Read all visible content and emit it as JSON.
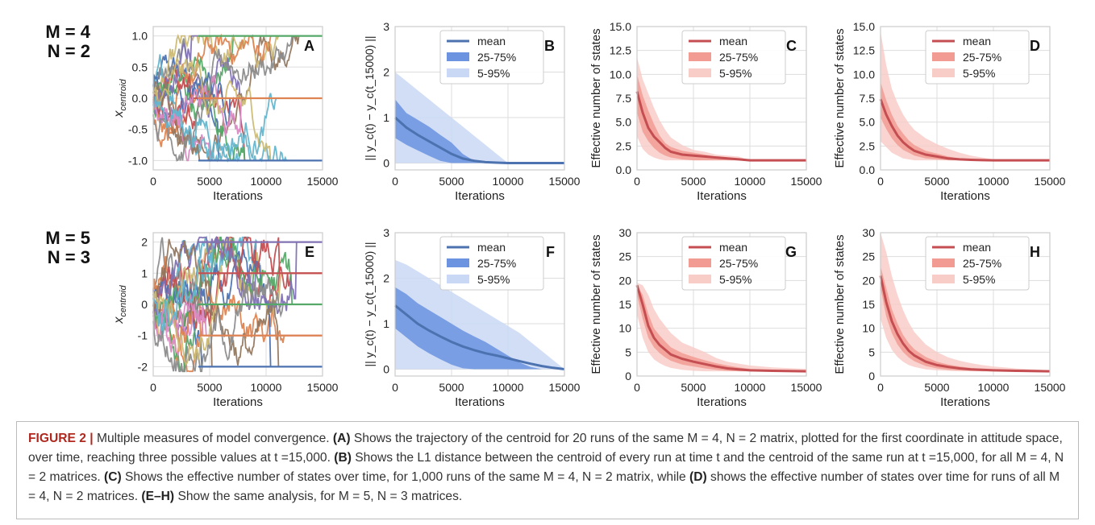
{
  "row_labels": [
    {
      "m": "M = 4",
      "n": "N = 2"
    },
    {
      "m": "M = 5",
      "n": "N = 3"
    }
  ],
  "colors": {
    "blue_mean": "#4c72b0",
    "blue_inner": "#6b93e0",
    "blue_outer": "#c9d8f5",
    "red_mean": "#c44e52",
    "red_inner": "#f29b93",
    "red_outer": "#f8cdc8",
    "grid": "#dddddd",
    "frame": "#cccccc",
    "traj": [
      "#4c72b0",
      "#dd8452",
      "#55a868",
      "#c44e52",
      "#8172b3",
      "#937860",
      "#da8bc3",
      "#8c8c8c",
      "#ccb974",
      "#64b5cd"
    ]
  },
  "chart_data": [
    {
      "id": "A",
      "panel_label": "A",
      "type": "line",
      "description": "trajectories of centroid for 20 runs",
      "xlabel": "Iterations",
      "ylabel": "x",
      "ylabel_sub": "centroid",
      "xlim": [
        0,
        15000
      ],
      "ylim": [
        -1.15,
        1.15
      ],
      "xticks": [
        "0",
        "5000",
        "10000",
        "15000"
      ],
      "yticks": [
        "-1.0",
        "-0.5",
        "0.0",
        "0.5",
        "1.0"
      ],
      "ytick_values": [
        -1,
        -0.5,
        0,
        0.5,
        1
      ],
      "runs": 20,
      "final_values": [
        -1,
        0,
        1
      ],
      "levels_from": 1
    },
    {
      "id": "B",
      "panel_label": "B",
      "type": "area",
      "xlabel": "Iterations",
      "ylabel": "|| y_c(t) − y_c(t_15000) ||",
      "xlim": [
        0,
        15000
      ],
      "ylim": [
        -0.15,
        3
      ],
      "xticks": [
        "0",
        "5000",
        "10000",
        "15000"
      ],
      "yticks": [
        "0",
        "1",
        "2",
        "3"
      ],
      "ytick_values": [
        0,
        1,
        2,
        3
      ],
      "legend": [
        "mean",
        "25-75%",
        "5-95%"
      ],
      "palette": "blue",
      "x": [
        0,
        1000,
        2000,
        3000,
        4000,
        5000,
        6000,
        7000,
        8000,
        9000,
        10000,
        12000,
        15000
      ],
      "mean": [
        1.0,
        0.78,
        0.62,
        0.48,
        0.34,
        0.2,
        0.1,
        0.05,
        0.02,
        0.01,
        0.0,
        0.0,
        0.0
      ],
      "q25": [
        0.55,
        0.4,
        0.28,
        0.16,
        0.05,
        0.0,
        0.0,
        0.0,
        0.0,
        0.0,
        0.0,
        0.0,
        0.0
      ],
      "q75": [
        1.4,
        1.1,
        0.95,
        0.8,
        0.62,
        0.45,
        0.2,
        0.05,
        0.02,
        0.0,
        0.0,
        0.0,
        0.0
      ],
      "q05": [
        0.0,
        0.0,
        0.0,
        0.0,
        0.0,
        0.0,
        0.0,
        0.0,
        0.0,
        0.0,
        0.0,
        0.0,
        0.0
      ],
      "q95": [
        2.0,
        1.8,
        1.6,
        1.4,
        1.2,
        1.0,
        0.8,
        0.6,
        0.4,
        0.2,
        0.0,
        0.0,
        0.0
      ]
    },
    {
      "id": "C",
      "panel_label": "C",
      "type": "area",
      "xlabel": "Iterations",
      "ylabel": "Effective number of states",
      "xlim": [
        0,
        15000
      ],
      "ylim": [
        0,
        15
      ],
      "xticks": [
        "0",
        "5000",
        "10000",
        "15000"
      ],
      "yticks": [
        "0.0",
        "2.5",
        "5.0",
        "7.5",
        "10.0",
        "12.5",
        "15.0"
      ],
      "ytick_values": [
        0,
        2.5,
        5,
        7.5,
        10,
        12.5,
        15
      ],
      "legend": [
        "mean",
        "25-75%",
        "5-95%"
      ],
      "palette": "red",
      "x": [
        0,
        500,
        1000,
        1500,
        2000,
        2500,
        3000,
        4000,
        5000,
        6000,
        7000,
        8000,
        9000,
        10000,
        12000,
        15000
      ],
      "mean": [
        8.2,
        6.0,
        4.4,
        3.5,
        2.9,
        2.3,
        1.9,
        1.6,
        1.5,
        1.4,
        1.3,
        1.2,
        1.1,
        1.0,
        1.0,
        1.0
      ],
      "q25": [
        6.0,
        4.0,
        3.0,
        2.3,
        1.8,
        1.5,
        1.3,
        1.1,
        1.0,
        1.0,
        1.0,
        1.0,
        1.0,
        1.0,
        1.0,
        1.0
      ],
      "q75": [
        10.0,
        7.8,
        6.2,
        4.8,
        3.6,
        2.8,
        2.4,
        2.0,
        1.8,
        1.6,
        1.4,
        1.3,
        1.2,
        1.0,
        1.0,
        1.0
      ],
      "q05": [
        3.5,
        2.2,
        1.6,
        1.3,
        1.1,
        1.0,
        1.0,
        1.0,
        1.0,
        1.0,
        1.0,
        1.0,
        1.0,
        1.0,
        1.0,
        1.0
      ],
      "q95": [
        11.8,
        9.5,
        8.0,
        6.5,
        5.2,
        4.2,
        3.4,
        2.6,
        2.1,
        1.9,
        1.6,
        1.5,
        1.4,
        1.0,
        1.0,
        1.0
      ]
    },
    {
      "id": "D",
      "panel_label": "D",
      "type": "area",
      "xlabel": "Iterations",
      "ylabel": "Effective number of states",
      "xlim": [
        0,
        15000
      ],
      "ylim": [
        0,
        15
      ],
      "xticks": [
        "0",
        "5000",
        "10000",
        "15000"
      ],
      "yticks": [
        "0.0",
        "2.5",
        "5.0",
        "7.5",
        "10.0",
        "12.5",
        "15.0"
      ],
      "ytick_values": [
        0,
        2.5,
        5,
        7.5,
        10,
        12.5,
        15
      ],
      "legend": [
        "mean",
        "25-75%",
        "5-95%"
      ],
      "palette": "red",
      "x": [
        0,
        500,
        1000,
        1500,
        2000,
        2500,
        3000,
        4000,
        5000,
        6000,
        7000,
        8000,
        9000,
        10000,
        12000,
        15000
      ],
      "mean": [
        7.4,
        5.8,
        4.6,
        3.6,
        2.9,
        2.4,
        2.0,
        1.6,
        1.4,
        1.2,
        1.1,
        1.05,
        1.02,
        1.0,
        1.0,
        1.0
      ],
      "q25": [
        5.5,
        4.3,
        3.3,
        2.6,
        2.1,
        1.8,
        1.5,
        1.2,
        1.1,
        1.0,
        1.0,
        1.0,
        1.0,
        1.0,
        1.0,
        1.0
      ],
      "q75": [
        9.2,
        7.3,
        5.8,
        4.6,
        3.8,
        3.1,
        2.6,
        2.0,
        1.7,
        1.4,
        1.2,
        1.1,
        1.05,
        1.0,
        1.0,
        1.0
      ],
      "q05": [
        3.0,
        2.4,
        1.8,
        1.5,
        1.2,
        1.1,
        1.0,
        1.0,
        1.0,
        1.0,
        1.0,
        1.0,
        1.0,
        1.0,
        1.0,
        1.0
      ],
      "q95": [
        14.5,
        11.0,
        8.5,
        7.0,
        5.8,
        4.9,
        4.2,
        3.3,
        2.7,
        2.2,
        1.8,
        1.5,
        1.3,
        1.1,
        1.0,
        1.0
      ]
    },
    {
      "id": "E",
      "panel_label": "E",
      "type": "line",
      "description": "trajectories of centroid for 20 runs",
      "xlabel": "Iterations",
      "ylabel": "x",
      "ylabel_sub": "centroid",
      "xlim": [
        0,
        15000
      ],
      "ylim": [
        -2.3,
        2.3
      ],
      "xticks": [
        "0",
        "5000",
        "10000",
        "15000"
      ],
      "yticks": [
        "-2",
        "-1",
        "0",
        "1",
        "2"
      ],
      "ytick_values": [
        -2,
        -1,
        0,
        1,
        2
      ],
      "runs": 20,
      "final_values": [
        -2,
        -1,
        0,
        1,
        2
      ],
      "levels_from": 1
    },
    {
      "id": "F",
      "panel_label": "F",
      "type": "area",
      "xlabel": "Iterations",
      "ylabel": "|| y_c(t) − y_c(t_15000) ||",
      "xlim": [
        0,
        15000
      ],
      "ylim": [
        -0.15,
        3
      ],
      "xticks": [
        "0",
        "5000",
        "10000",
        "15000"
      ],
      "yticks": [
        "0",
        "1",
        "2",
        "3"
      ],
      "ytick_values": [
        0,
        1,
        2,
        3
      ],
      "legend": [
        "mean",
        "25-75%",
        "5-95%"
      ],
      "palette": "blue",
      "x": [
        0,
        1000,
        2000,
        3000,
        4000,
        5000,
        6000,
        7000,
        8000,
        9000,
        10000,
        11000,
        12000,
        13000,
        14000,
        15000
      ],
      "mean": [
        1.4,
        1.2,
        1.0,
        0.85,
        0.72,
        0.6,
        0.5,
        0.42,
        0.35,
        0.3,
        0.24,
        0.18,
        0.12,
        0.07,
        0.03,
        0.0
      ],
      "q25": [
        0.9,
        0.7,
        0.5,
        0.35,
        0.22,
        0.1,
        0.02,
        0.0,
        0.0,
        0.0,
        0.0,
        0.0,
        0.0,
        0.0,
        0.0,
        0.0
      ],
      "q75": [
        1.8,
        1.65,
        1.45,
        1.3,
        1.15,
        1.0,
        0.85,
        0.72,
        0.6,
        0.45,
        0.3,
        0.15,
        0.05,
        0.0,
        0.0,
        0.0
      ],
      "q05": [
        0.0,
        0.0,
        0.0,
        0.0,
        0.0,
        0.0,
        0.0,
        0.0,
        0.0,
        0.0,
        0.0,
        0.0,
        0.0,
        0.0,
        0.0,
        0.0
      ],
      "q95": [
        2.4,
        2.3,
        2.15,
        2.0,
        1.85,
        1.7,
        1.55,
        1.4,
        1.25,
        1.1,
        0.95,
        0.8,
        0.6,
        0.4,
        0.2,
        0.0
      ]
    },
    {
      "id": "G",
      "panel_label": "G",
      "type": "area",
      "xlabel": "Iterations",
      "ylabel": "Effective number of states",
      "xlim": [
        0,
        15000
      ],
      "ylim": [
        0,
        30
      ],
      "xticks": [
        "0",
        "5000",
        "10000",
        "15000"
      ],
      "yticks": [
        "0",
        "5",
        "10",
        "15",
        "20",
        "25",
        "30"
      ],
      "ytick_values": [
        0,
        5,
        10,
        15,
        20,
        25,
        30
      ],
      "legend": [
        "mean",
        "25-75%",
        "5-95%"
      ],
      "palette": "red",
      "x": [
        0,
        500,
        1000,
        1500,
        2000,
        2500,
        3000,
        4000,
        5000,
        6000,
        7000,
        8000,
        9000,
        10000,
        12000,
        15000
      ],
      "mean": [
        19.0,
        15.0,
        10.5,
        8.0,
        6.5,
        5.5,
        4.5,
        3.6,
        3.0,
        2.5,
        2.0,
        1.6,
        1.4,
        1.2,
        1.1,
        1.0
      ],
      "q25": [
        17.0,
        12.0,
        8.0,
        6.0,
        4.8,
        3.9,
        3.2,
        2.4,
        2.0,
        1.6,
        1.3,
        1.1,
        1.0,
        1.0,
        1.0,
        1.0
      ],
      "q75": [
        19.0,
        17.0,
        13.0,
        10.0,
        8.5,
        7.2,
        6.0,
        4.8,
        4.0,
        3.3,
        2.7,
        2.2,
        1.8,
        1.5,
        1.2,
        1.1
      ],
      "q05": [
        13.0,
        8.0,
        5.0,
        3.5,
        2.7,
        2.1,
        1.7,
        1.3,
        1.1,
        1.0,
        1.0,
        1.0,
        1.0,
        1.0,
        1.0,
        1.0
      ],
      "q95": [
        19.5,
        19.0,
        17.0,
        14.0,
        12.0,
        10.5,
        9.0,
        7.0,
        6.0,
        5.0,
        3.8,
        3.0,
        2.6,
        2.2,
        1.8,
        1.5
      ]
    },
    {
      "id": "H",
      "panel_label": "H",
      "type": "area",
      "xlabel": "Iterations",
      "ylabel": "Effective number of states",
      "xlim": [
        0,
        15000
      ],
      "ylim": [
        0,
        30
      ],
      "xticks": [
        "0",
        "5000",
        "10000",
        "15000"
      ],
      "yticks": [
        "0",
        "5",
        "10",
        "15",
        "20",
        "25",
        "30"
      ],
      "ytick_values": [
        0,
        5,
        10,
        15,
        20,
        25,
        30
      ],
      "legend": [
        "mean",
        "25-75%",
        "5-95%"
      ],
      "palette": "red",
      "x": [
        0,
        500,
        1000,
        1500,
        2000,
        2500,
        3000,
        4000,
        5000,
        6000,
        7000,
        8000,
        9000,
        10000,
        12000,
        15000
      ],
      "mean": [
        21.0,
        15.5,
        11.5,
        8.8,
        6.8,
        5.3,
        4.3,
        3.0,
        2.3,
        1.9,
        1.6,
        1.4,
        1.3,
        1.2,
        1.1,
        1.0
      ],
      "q25": [
        18.5,
        12.5,
        9.0,
        6.6,
        5.0,
        3.9,
        3.1,
        2.1,
        1.6,
        1.3,
        1.2,
        1.1,
        1.0,
        1.0,
        1.0,
        1.0
      ],
      "q75": [
        23.0,
        18.5,
        14.0,
        11.0,
        8.6,
        6.9,
        5.6,
        4.0,
        3.0,
        2.4,
        2.0,
        1.7,
        1.5,
        1.3,
        1.1,
        1.0
      ],
      "q05": [
        12.0,
        8.0,
        5.5,
        4.0,
        3.0,
        2.3,
        1.9,
        1.4,
        1.2,
        1.1,
        1.0,
        1.0,
        1.0,
        1.0,
        1.0,
        1.0
      ],
      "q95": [
        30.0,
        26.0,
        21.0,
        17.0,
        13.8,
        11.2,
        9.2,
        6.6,
        5.0,
        3.9,
        3.2,
        2.7,
        2.3,
        2.0,
        1.6,
        1.2
      ]
    }
  ],
  "caption": {
    "figure_label": "FIGURE 2 |",
    "text": [
      {
        "t": " Multiple measures of model convergence. "
      },
      {
        "b": "(A)"
      },
      {
        "t": " Shows the trajectory of the centroid for 20 runs of the same M = 4, N = 2 matrix, plotted for the first coordinate in attitude space, over time, reaching three possible values at t =15,000. "
      },
      {
        "b": "(B)"
      },
      {
        "t": " Shows the L1 distance between the centroid of every run at time t and the centroid of the same run at t =15,000, for all M = 4, N = 2 matrices. "
      },
      {
        "b": "(C)"
      },
      {
        "t": " Shows the effective number of states over time, for 1,000 runs of the same M = 4, N = 2 matrix, while "
      },
      {
        "b": "(D)"
      },
      {
        "t": " shows the effective number of states over time for runs of all M = 4, N = 2 matrices. "
      },
      {
        "b": "(E–H)"
      },
      {
        "t": " Show the same analysis, for M = 5, N = 3 matrices."
      }
    ]
  }
}
